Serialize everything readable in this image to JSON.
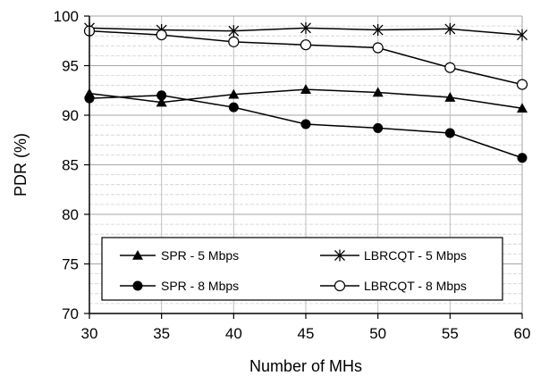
{
  "chart_data": {
    "type": "line",
    "xlabel": "Number of MHs",
    "ylabel": "PDR (%)",
    "x": [
      30,
      35,
      40,
      45,
      50,
      55,
      60
    ],
    "xlim": [
      30,
      60
    ],
    "ylim": [
      70,
      100
    ],
    "x_ticks": [
      "30",
      "35",
      "40",
      "45",
      "50",
      "55",
      "60"
    ],
    "y_ticks": [
      "70",
      "75",
      "80",
      "85",
      "90",
      "95",
      "100"
    ],
    "grid": true,
    "legend_position": "bottom",
    "series": [
      {
        "name": "SPR - 5 Mbps",
        "marker": "filled-triangle",
        "values": [
          92.2,
          91.3,
          92.1,
          92.6,
          92.3,
          91.8,
          90.7
        ]
      },
      {
        "name": "LBRCQT - 5 Mbps",
        "marker": "star",
        "values": [
          98.8,
          98.6,
          98.5,
          98.8,
          98.6,
          98.7,
          98.1
        ]
      },
      {
        "name": "SPR - 8 Mbps",
        "marker": "filled-circle",
        "values": [
          91.7,
          92.0,
          90.8,
          89.1,
          88.7,
          88.2,
          85.7
        ]
      },
      {
        "name": "LBRCQT - 8 Mbps",
        "marker": "open-circle",
        "values": [
          98.5,
          98.1,
          97.4,
          97.1,
          96.8,
          94.8,
          93.1
        ]
      }
    ]
  }
}
